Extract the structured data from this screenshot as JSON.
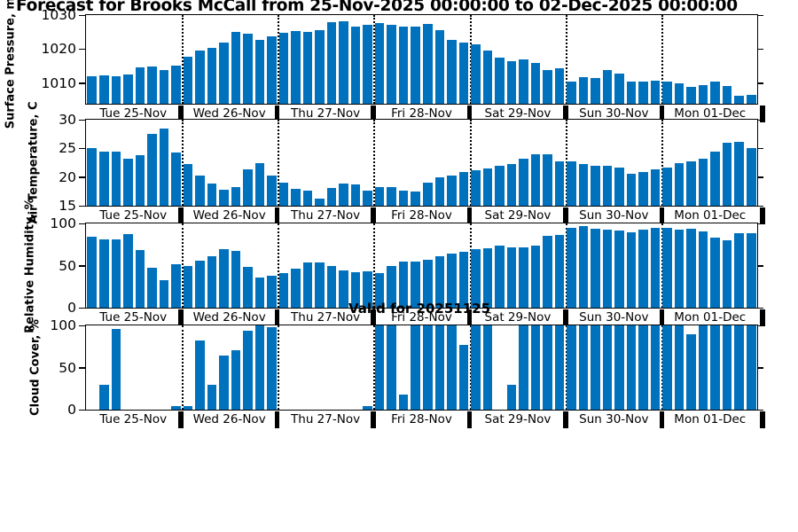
{
  "title": "Forecast for Brooks McCall from 25-Nov-2025 00:00:00 to 02-Dec-2025 00:00:00",
  "annotation": "Valid for 20251125",
  "bar_color": "#0072BD",
  "day_labels": [
    "Tue 25-Nov",
    "Wed 26-Nov",
    "Thu 27-Nov",
    "Fri 28-Nov",
    "Sat 29-Nov",
    "Sun 30-Nov",
    "Mon 01-Dec"
  ],
  "slots_per_day": 8,
  "chart_data": [
    {
      "name": "surface-pressure",
      "type": "bar",
      "title": "",
      "xlabel": "",
      "ylabel": "Surface Pressure, mb",
      "ylim": [
        1004,
        1030
      ],
      "yticks": [
        1010,
        1020,
        1030
      ],
      "categories": [
        "Tue 25-Nov",
        "Wed 26-Nov",
        "Thu 27-Nov",
        "Fri 28-Nov",
        "Sat 29-Nov",
        "Sun 30-Nov",
        "Mon 01-Dec"
      ],
      "values": [
        1012,
        1012.3,
        1012,
        1012.5,
        1014.7,
        1015,
        1013.8,
        1015.2,
        1017.8,
        1019.6,
        1020.3,
        1022,
        1025,
        1024.5,
        1022.8,
        1023.8,
        1024.9,
        1025.4,
        1025.1,
        1025.6,
        1027.9,
        1028.2,
        1026.5,
        1027.2,
        1027.6,
        1027.1,
        1026.5,
        1026.7,
        1027.5,
        1025.6,
        1022.8,
        1021.9,
        1021.4,
        1019.6,
        1017.4,
        1016.4,
        1017.1,
        1015.9,
        1014,
        1014.3,
        1010.5,
        1011.9,
        1011.6,
        1013.9,
        1012.9,
        1010.5,
        1010.4,
        1010.8,
        1010.4,
        1010,
        1008.9,
        1009.4,
        1010.4,
        1009.2,
        1006.4,
        1006.6
      ]
    },
    {
      "name": "air-temperature",
      "type": "bar",
      "title": "",
      "xlabel": "",
      "ylabel": "Air Temperature, C",
      "ylim": [
        15,
        30
      ],
      "yticks": [
        15,
        20,
        25,
        30
      ],
      "categories": [
        "Tue 25-Nov",
        "Wed 26-Nov",
        "Thu 27-Nov",
        "Fri 28-Nov",
        "Sat 29-Nov",
        "Sun 30-Nov",
        "Mon 01-Dec"
      ],
      "values": [
        25,
        24.5,
        24.5,
        23.2,
        23.8,
        27.5,
        28.4,
        24.3,
        22.3,
        20.2,
        18.8,
        17.8,
        18.2,
        21.4,
        22.5,
        20.2,
        19,
        18,
        17.6,
        16.3,
        18.1,
        18.9,
        18.7,
        17.6,
        18.2,
        18.3,
        17.7,
        17.5,
        19,
        19.9,
        20.3,
        20.8,
        21.2,
        21.5,
        22,
        22.3,
        23.2,
        23.9,
        23.9,
        22.8,
        22.7,
        22.3,
        21.9,
        22,
        21.6,
        20.5,
        20.8,
        21.3,
        21.6,
        22.4,
        22.8,
        23.2,
        24.5,
        26,
        26.1,
        25
      ]
    },
    {
      "name": "relative-humidity",
      "type": "bar",
      "title": "",
      "xlabel": "",
      "ylabel": "Relative Humidity, %",
      "ylim": [
        0,
        100
      ],
      "yticks": [
        0,
        50,
        100
      ],
      "categories": [
        "Tue 25-Nov",
        "Wed 26-Nov",
        "Thu 27-Nov",
        "Fri 28-Nov",
        "Sat 29-Nov",
        "Sun 30-Nov",
        "Mon 01-Dec"
      ],
      "values": [
        84,
        81,
        81,
        87,
        68,
        47,
        33,
        52,
        50,
        56,
        61,
        69,
        67,
        48,
        36,
        38,
        41,
        46,
        54,
        54,
        49,
        44,
        42,
        43,
        41,
        49,
        55,
        55,
        57,
        61,
        64,
        66,
        69,
        71,
        74,
        72,
        72,
        74,
        85,
        86,
        95,
        97,
        94,
        93,
        92,
        90,
        93,
        95,
        95,
        93,
        94,
        91,
        83,
        80,
        88,
        88
      ]
    },
    {
      "name": "cloud-cover",
      "type": "bar",
      "title": "",
      "xlabel": "",
      "ylabel": "Cloud Cover, %",
      "ylim": [
        0,
        100
      ],
      "yticks": [
        0,
        50,
        100
      ],
      "categories": [
        "Tue 25-Nov",
        "Wed 26-Nov",
        "Thu 27-Nov",
        "Fri 28-Nov",
        "Sat 29-Nov",
        "Sun 30-Nov",
        "Mon 01-Dec"
      ],
      "values": [
        0,
        29,
        96,
        0,
        0,
        0,
        0,
        4,
        4,
        82,
        29,
        64,
        71,
        94,
        100,
        98,
        0,
        0,
        0,
        0,
        0,
        0,
        0,
        4,
        100,
        100,
        18,
        100,
        100,
        100,
        100,
        77,
        100,
        100,
        0,
        30,
        100,
        100,
        100,
        100,
        100,
        100,
        100,
        100,
        100,
        100,
        100,
        100,
        100,
        100,
        89,
        100,
        100,
        100,
        100,
        100
      ]
    }
  ]
}
